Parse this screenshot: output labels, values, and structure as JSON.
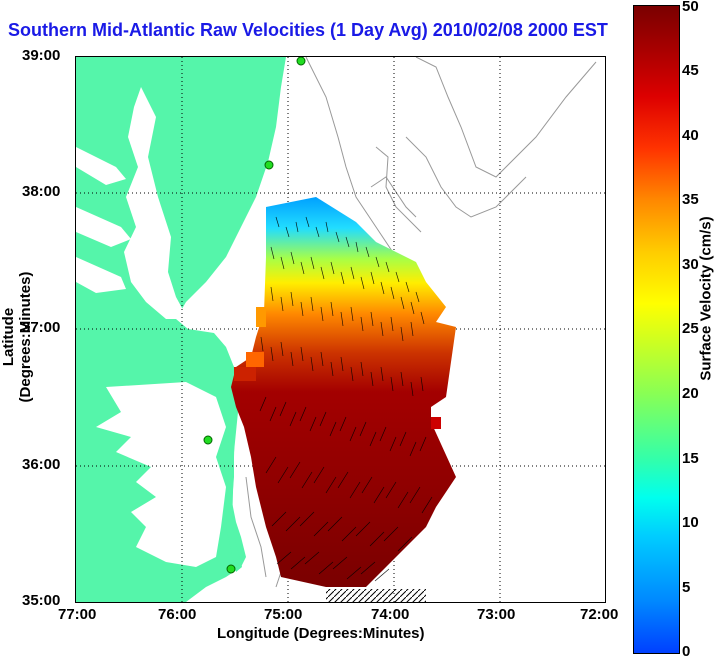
{
  "title": "Southern Mid-Atlantic Raw Velocities (1 Day Avg) 2010/02/08 2000 EST",
  "axes": {
    "xlabel": "Longitude (Degrees:Minutes)",
    "ylabel": "Latitude (Degrees:Minutes)",
    "x_ticks": [
      "77:00",
      "76:00",
      "75:00",
      "74:00",
      "73:00",
      "72:00"
    ],
    "y_ticks": [
      "39:00",
      "38:00",
      "37:00",
      "36:00",
      "35:00"
    ]
  },
  "colorbar": {
    "label": "Surface Velocity (cm/s)",
    "ticks": [
      "50",
      "45",
      "40",
      "35",
      "30",
      "25",
      "20",
      "15",
      "10",
      "5",
      "0"
    ],
    "range": [
      0,
      50
    ],
    "colors": {
      "low": "#0040ff",
      "mid": "#ffff00",
      "high": "#7a0000"
    }
  },
  "map": {
    "land_color": "#55f5aa",
    "water_color": "#ffffff",
    "bathymetry_color": "#999999",
    "grid": "dotted",
    "extent_lon": [
      -77,
      -72
    ],
    "extent_lat": [
      35,
      39
    ]
  }
}
